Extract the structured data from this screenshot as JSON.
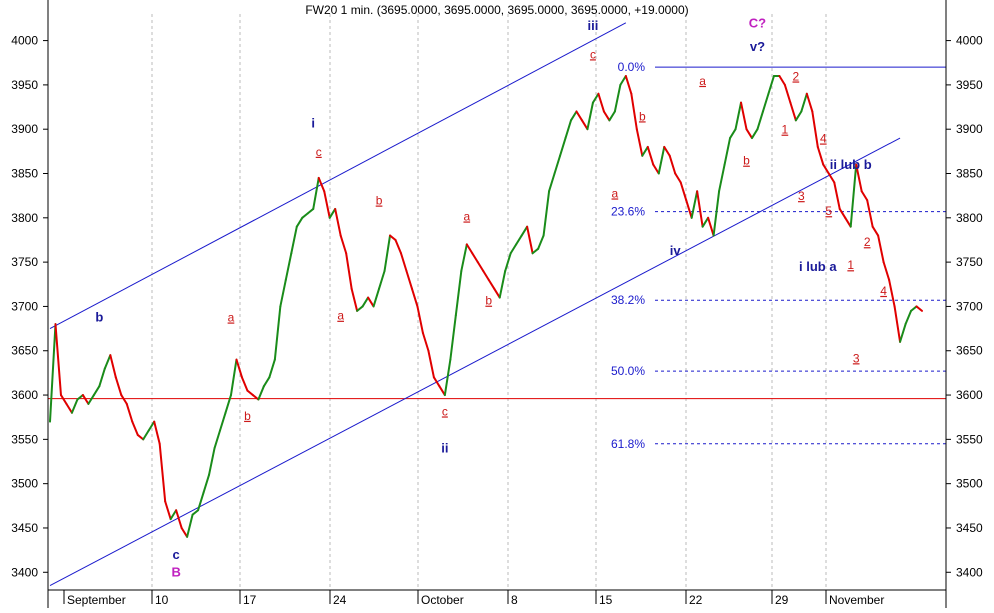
{
  "chart_data": {
    "type": "line",
    "title": "FW20 1 min. (3695.0000, 3695.0000, 3695.0000, 3695.0000, +19.0000)",
    "xlabel": "",
    "ylabel": "",
    "ylim": [
      3380,
      4030
    ],
    "y_ticks": [
      3400,
      3450,
      3500,
      3550,
      3600,
      3650,
      3700,
      3750,
      3800,
      3850,
      3900,
      3950,
      4000
    ],
    "x_ticks": [
      "September",
      "10",
      "17",
      "24",
      "October",
      "8",
      "15",
      "22",
      "29",
      "November"
    ],
    "grid": "vertical dashed at date boundaries",
    "colors": {
      "up": "#1a8c1a",
      "down": "#e00000",
      "channel": "#1a1acc",
      "fib_label": "#1a1acc",
      "support": "#e00000",
      "wave_blue": "#1a1a99",
      "wave_red": "#cc1a1a",
      "wave_magenta": "#c020c0"
    },
    "series": [
      {
        "values": [
          3570,
          3680,
          3600,
          3590,
          3580,
          3595,
          3600,
          3590,
          3600,
          3610,
          3630,
          3645,
          3620,
          3600,
          3590,
          3570,
          3555,
          3550,
          3560,
          3570,
          3545,
          3480,
          3460,
          3470,
          3450,
          3440,
          3465,
          3470,
          3490,
          3510,
          3540,
          3560,
          3580,
          3600,
          3640,
          3620,
          3605,
          3600,
          3595,
          3610,
          3620,
          3640,
          3700,
          3730,
          3760,
          3790,
          3800,
          3805,
          3810,
          3845,
          3830,
          3800,
          3810,
          3780,
          3760,
          3720,
          3695,
          3700,
          3710,
          3700,
          3720,
          3740,
          3780,
          3775,
          3760,
          3740,
          3720,
          3700,
          3670,
          3650,
          3620,
          3610,
          3600,
          3640,
          3690,
          3740,
          3770,
          3760,
          3750,
          3740,
          3730,
          3720,
          3710,
          3740,
          3760,
          3770,
          3780,
          3790,
          3760,
          3765,
          3780,
          3830,
          3850,
          3870,
          3890,
          3910,
          3920,
          3910,
          3900,
          3930,
          3940,
          3920,
          3910,
          3920,
          3950,
          3960,
          3940,
          3900,
          3870,
          3880,
          3860,
          3850,
          3880,
          3870,
          3850,
          3840,
          3820,
          3800,
          3830,
          3790,
          3800,
          3780,
          3830,
          3860,
          3890,
          3900,
          3930,
          3900,
          3890,
          3900,
          3920,
          3940,
          3960,
          3960,
          3950,
          3930,
          3910,
          3920,
          3940,
          3920,
          3880,
          3860,
          3850,
          3840,
          3810,
          3800,
          3790,
          3860,
          3830,
          3820,
          3790,
          3780,
          3750,
          3730,
          3700,
          3660,
          3680,
          3695,
          3700,
          3695
        ]
      }
    ],
    "reference_lines": [
      {
        "label": "0.0%",
        "value": 3970
      },
      {
        "label": "23.6%",
        "value": 3807
      },
      {
        "label": "38.2%",
        "value": 3707
      },
      {
        "label": "50.0%",
        "value": 3627
      },
      {
        "label": "61.8%",
        "value": 3545
      },
      {
        "label": "",
        "value": 3596
      }
    ],
    "channel_lines": [
      {
        "p1": [
          0,
          3675
        ],
        "p2": [
          105,
          4020
        ]
      },
      {
        "p1": [
          0,
          3385
        ],
        "p2": [
          155,
          3890
        ]
      }
    ],
    "annotations": [
      {
        "text": "b",
        "i": 9,
        "y": 3683,
        "group": "blue"
      },
      {
        "text": "c",
        "i": 23,
        "y": 3415,
        "group": "blue"
      },
      {
        "text": "B",
        "i": 23,
        "y": 3395,
        "group": "magenta"
      },
      {
        "text": "a",
        "i": 33,
        "y": 3683,
        "group": "red"
      },
      {
        "text": "b",
        "i": 36,
        "y": 3572,
        "group": "red"
      },
      {
        "text": "i",
        "i": 48,
        "y": 3902,
        "group": "blue"
      },
      {
        "text": "c",
        "i": 49,
        "y": 3870,
        "group": "red"
      },
      {
        "text": "a",
        "i": 53,
        "y": 3685,
        "group": "red"
      },
      {
        "text": "b",
        "i": 60,
        "y": 3815,
        "group": "red"
      },
      {
        "text": "c",
        "i": 72,
        "y": 3577,
        "group": "red"
      },
      {
        "text": "ii",
        "i": 72,
        "y": 3535,
        "group": "blue"
      },
      {
        "text": "a",
        "i": 76,
        "y": 3797,
        "group": "red"
      },
      {
        "text": "b",
        "i": 80,
        "y": 3702,
        "group": "red"
      },
      {
        "text": "iii",
        "i": 99,
        "y": 4012,
        "group": "blue"
      },
      {
        "text": "c",
        "i": 99,
        "y": 3980,
        "group": "red"
      },
      {
        "text": "a",
        "i": 103,
        "y": 3823,
        "group": "red"
      },
      {
        "text": "b",
        "i": 108,
        "y": 3910,
        "group": "red"
      },
      {
        "text": "iv",
        "i": 114,
        "y": 3758,
        "group": "blue"
      },
      {
        "text": "a",
        "i": 119,
        "y": 3950,
        "group": "red"
      },
      {
        "text": "b",
        "i": 127,
        "y": 3860,
        "group": "red"
      },
      {
        "text": "C?",
        "i": 129,
        "y": 4015,
        "group": "magenta"
      },
      {
        "text": "v?",
        "i": 129,
        "y": 3988,
        "group": "blue"
      },
      {
        "text": "1",
        "i": 134,
        "y": 3895,
        "group": "red"
      },
      {
        "text": "2",
        "i": 136,
        "y": 3955,
        "group": "red"
      },
      {
        "text": "4",
        "i": 141,
        "y": 3885,
        "group": "red"
      },
      {
        "text": "3",
        "i": 137,
        "y": 3820,
        "group": "red"
      },
      {
        "text": "ii lub b",
        "i": 146,
        "y": 3855,
        "group": "blue"
      },
      {
        "text": "5",
        "i": 142,
        "y": 3803,
        "group": "red"
      },
      {
        "text": "i lub a",
        "i": 140,
        "y": 3740,
        "group": "blue"
      },
      {
        "text": "2",
        "i": 149,
        "y": 3768,
        "group": "red"
      },
      {
        "text": "1",
        "i": 146,
        "y": 3742,
        "group": "red"
      },
      {
        "text": "4",
        "i": 152,
        "y": 3713,
        "group": "red"
      },
      {
        "text": "3",
        "i": 147,
        "y": 3637,
        "group": "red"
      }
    ]
  }
}
